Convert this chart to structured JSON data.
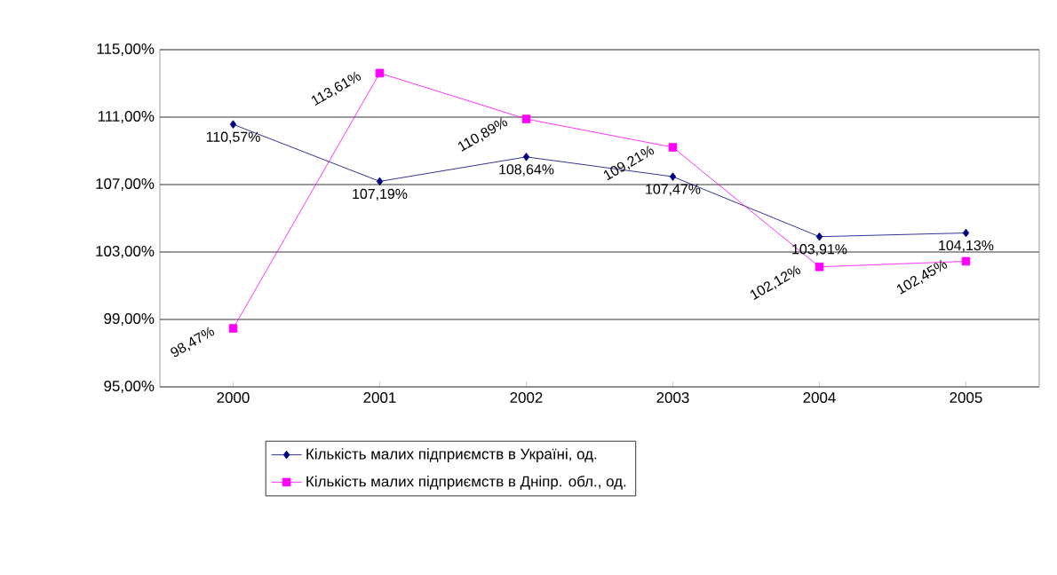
{
  "chart_data": {
    "type": "line",
    "categories": [
      "2000",
      "2001",
      "2002",
      "2003",
      "2004",
      "2005"
    ],
    "series": [
      {
        "name": "Кількість малих підприємств в Україні, од.",
        "color": "#000080",
        "marker": "diamond",
        "values": [
          110.57,
          107.19,
          108.64,
          107.47,
          103.91,
          104.13
        ],
        "value_labels": [
          "110,57%",
          "107,19%",
          "108,64%",
          "107,47%",
          "103,91%",
          "104,13%"
        ]
      },
      {
        "name": "Кількість малих підприємств в Дніпр. обл., од.",
        "color": "#ff00ff",
        "marker": "square",
        "values": [
          98.47,
          113.61,
          110.89,
          109.21,
          102.12,
          102.45
        ],
        "value_labels": [
          "98,47%",
          "113,61%",
          "110,89%",
          "109,21%",
          "102,12%",
          "102,45%"
        ]
      }
    ],
    "ylim": [
      95,
      115
    ],
    "yticks": [
      {
        "value": 95,
        "label": "95,00%"
      },
      {
        "value": 99,
        "label": "99,00%"
      },
      {
        "value": 103,
        "label": "103,00%"
      },
      {
        "value": 107,
        "label": "107,00%"
      },
      {
        "value": 111,
        "label": "111,00%"
      },
      {
        "value": 115,
        "label": "115,00%"
      }
    ],
    "grid": "y",
    "legend": "bottom"
  }
}
